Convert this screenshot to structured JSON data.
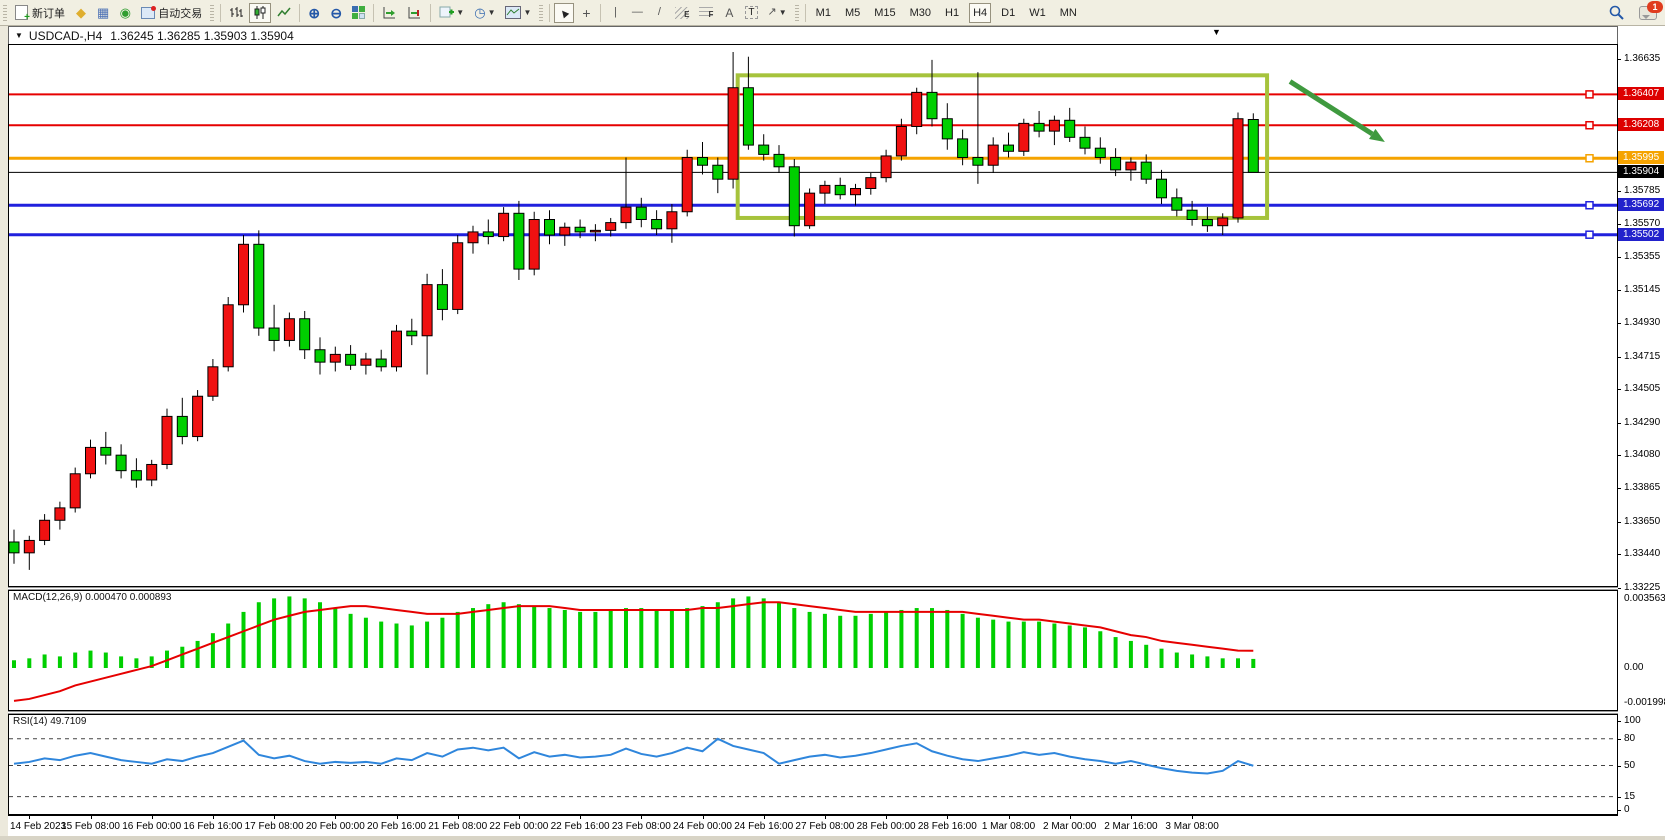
{
  "toolbar": {
    "new_order_label": "新订单",
    "auto_trading_label": "自动交易",
    "timeframes": [
      "M1",
      "M5",
      "M15",
      "M30",
      "H1",
      "H4",
      "D1",
      "W1",
      "MN"
    ],
    "active_timeframe": "H4",
    "notification_count": "1",
    "draw_channel_tag": "E",
    "draw_fibo_tag": "F",
    "text_tool_label": "A",
    "label_tool_label": "T",
    "icons": [
      "new-order-icon",
      "gold-diamond-icon",
      "market-window-icon",
      "signals-icon",
      "auto-trading-icon",
      "bar-chart-icon",
      "candlestick-chart-icon",
      "line-chart-icon",
      "zoom-in-icon",
      "zoom-out-icon",
      "tile-windows-icon",
      "auto-scroll-icon",
      "chart-shift-icon",
      "add-indicator-icon",
      "period-icon",
      "template-icon",
      "cursor-icon",
      "crosshair-icon",
      "vertical-line-icon",
      "horizontal-line-icon",
      "trendline-icon",
      "channel-icon",
      "fibonacci-icon",
      "text-icon",
      "label-icon",
      "arrows-icon",
      "search-icon",
      "notifications-icon"
    ]
  },
  "chart_header": {
    "symbol_period": "USDCAD-,H4",
    "ohlc": "1.36245 1.36285 1.35903 1.35904"
  },
  "price_axis": {
    "ticks": [
      1.36635,
      1.35785,
      1.3557,
      1.35355,
      1.35145,
      1.3493,
      1.34715,
      1.34505,
      1.3429,
      1.3408,
      1.33865,
      1.3365,
      1.3344,
      1.33225
    ],
    "badges": [
      {
        "text": "1.36407",
        "color": "#dd0000"
      },
      {
        "text": "1.36208",
        "color": "#dd0000"
      },
      {
        "text": "1.35995",
        "color": "#f5a300"
      },
      {
        "text": "1.35904",
        "color": "#000000"
      },
      {
        "text": "1.35692",
        "color": "#2222cc"
      },
      {
        "text": "1.35502",
        "color": "#2222cc"
      }
    ]
  },
  "time_axis": {
    "labels": [
      "14 Feb 2023",
      "15 Feb 08:00",
      "16 Feb 00:00",
      "16 Feb 16:00",
      "17 Feb 08:00",
      "20 Feb 00:00",
      "20 Feb 16:00",
      "21 Feb 08:00",
      "22 Feb 00:00",
      "22 Feb 16:00",
      "23 Feb 08:00",
      "24 Feb 00:00",
      "24 Feb 16:00",
      "27 Feb 08:00",
      "28 Feb 00:00",
      "28 Feb 16:00",
      "1 Mar 08:00",
      "2 Mar 00:00",
      "2 Mar 16:00",
      "3 Mar 08:00"
    ]
  },
  "indicators": {
    "macd": {
      "label": "MACD(12,26,9)",
      "values": "0.000470 0.000893",
      "axis_max": "0.003563",
      "axis_zero": "0.00",
      "axis_min": "-0.001998"
    },
    "rsi": {
      "label": "RSI(14)",
      "value": "49.7109",
      "axis": [
        "100",
        "80",
        "50",
        "15",
        "0"
      ]
    }
  },
  "colors": {
    "bull": "#f01111",
    "bear": "#00cf00",
    "candle_outline": "#000000",
    "macd_hist": "#00cf00",
    "macd_signal": "#e60000",
    "rsi_line": "#2f86dc",
    "box": "#a6c33c",
    "arrow": "#3f9a3f",
    "line_red": "#e60000",
    "line_orange": "#f5a300",
    "line_blue": "#2121dd",
    "bid_line": "#000000"
  },
  "chart_data": [
    {
      "type": "candlestick",
      "symbol": "USDCAD",
      "timeframe": "H4",
      "title": "USDCAD-,H4",
      "ohlc_header": {
        "open": 1.36245,
        "high": 1.36285,
        "low": 1.35903,
        "close": 1.35904
      },
      "price_range": [
        1.33225,
        1.36732
      ],
      "candles": [
        [
          1.3352,
          1.336,
          1.3338,
          1.3345
        ],
        [
          1.3345,
          1.3356,
          1.3334,
          1.3353
        ],
        [
          1.3353,
          1.337,
          1.335,
          1.3366
        ],
        [
          1.3366,
          1.3378,
          1.336,
          1.3374
        ],
        [
          1.3374,
          1.34,
          1.3371,
          1.3396
        ],
        [
          1.3396,
          1.3418,
          1.3393,
          1.3413
        ],
        [
          1.3413,
          1.3423,
          1.3402,
          1.3408
        ],
        [
          1.3408,
          1.3415,
          1.3393,
          1.3398
        ],
        [
          1.3398,
          1.3406,
          1.3387,
          1.3392
        ],
        [
          1.3392,
          1.3405,
          1.3388,
          1.3402
        ],
        [
          1.3402,
          1.3438,
          1.3399,
          1.3433
        ],
        [
          1.3433,
          1.3445,
          1.3415,
          1.342
        ],
        [
          1.342,
          1.345,
          1.3417,
          1.3446
        ],
        [
          1.3446,
          1.347,
          1.3443,
          1.3465
        ],
        [
          1.3465,
          1.351,
          1.3462,
          1.3505
        ],
        [
          1.3505,
          1.355,
          1.35,
          1.3544
        ],
        [
          1.3544,
          1.3553,
          1.3485,
          1.349
        ],
        [
          1.349,
          1.3505,
          1.3475,
          1.3482
        ],
        [
          1.3482,
          1.35,
          1.3478,
          1.3496
        ],
        [
          1.3496,
          1.3501,
          1.347,
          1.3476
        ],
        [
          1.3476,
          1.3484,
          1.346,
          1.3468
        ],
        [
          1.3468,
          1.3478,
          1.3462,
          1.3473
        ],
        [
          1.3473,
          1.3479,
          1.3463,
          1.3466
        ],
        [
          1.3466,
          1.3474,
          1.346,
          1.347
        ],
        [
          1.347,
          1.3476,
          1.3462,
          1.3465
        ],
        [
          1.3465,
          1.3492,
          1.3462,
          1.3488
        ],
        [
          1.3488,
          1.3496,
          1.3479,
          1.3485
        ],
        [
          1.3485,
          1.3525,
          1.346,
          1.3518
        ],
        [
          1.3518,
          1.3528,
          1.3495,
          1.3502
        ],
        [
          1.3502,
          1.355,
          1.3499,
          1.3545
        ],
        [
          1.3545,
          1.3556,
          1.3538,
          1.3552
        ],
        [
          1.3552,
          1.356,
          1.3544,
          1.3549
        ],
        [
          1.3549,
          1.3568,
          1.3546,
          1.3564
        ],
        [
          1.3564,
          1.3572,
          1.3521,
          1.3528
        ],
        [
          1.3528,
          1.3565,
          1.3524,
          1.356
        ],
        [
          1.356,
          1.3566,
          1.3544,
          1.355
        ],
        [
          1.355,
          1.3558,
          1.3543,
          1.3555
        ],
        [
          1.3555,
          1.356,
          1.3548,
          1.3552
        ],
        [
          1.3552,
          1.3557,
          1.3546,
          1.3553
        ],
        [
          1.3553,
          1.3561,
          1.3549,
          1.3558
        ],
        [
          1.3558,
          1.36,
          1.3554,
          1.3568
        ],
        [
          1.3568,
          1.3574,
          1.3555,
          1.356
        ],
        [
          1.356,
          1.3566,
          1.355,
          1.3554
        ],
        [
          1.3554,
          1.357,
          1.3545,
          1.3565
        ],
        [
          1.3565,
          1.3605,
          1.3562,
          1.36
        ],
        [
          1.36,
          1.361,
          1.3589,
          1.3595
        ],
        [
          1.3595,
          1.36,
          1.3577,
          1.3586
        ],
        [
          1.3586,
          1.3668,
          1.358,
          1.3645
        ],
        [
          1.3645,
          1.3665,
          1.3605,
          1.3608
        ],
        [
          1.3608,
          1.3615,
          1.3598,
          1.3602
        ],
        [
          1.3602,
          1.3608,
          1.359,
          1.3594
        ],
        [
          1.3594,
          1.3599,
          1.3549,
          1.3556
        ],
        [
          1.3556,
          1.358,
          1.3554,
          1.3577
        ],
        [
          1.3577,
          1.3585,
          1.357,
          1.3582
        ],
        [
          1.3582,
          1.3587,
          1.3573,
          1.3576
        ],
        [
          1.3576,
          1.3583,
          1.3569,
          1.358
        ],
        [
          1.358,
          1.359,
          1.3576,
          1.3587
        ],
        [
          1.3587,
          1.3605,
          1.3584,
          1.3601
        ],
        [
          1.3601,
          1.3625,
          1.3598,
          1.362
        ],
        [
          1.362,
          1.3645,
          1.3615,
          1.3642
        ],
        [
          1.3642,
          1.3663,
          1.362,
          1.3625
        ],
        [
          1.3625,
          1.3635,
          1.3605,
          1.3612
        ],
        [
          1.3612,
          1.3618,
          1.3595,
          1.36
        ],
        [
          1.36,
          1.3655,
          1.3583,
          1.3595
        ],
        [
          1.3595,
          1.3613,
          1.359,
          1.3608
        ],
        [
          1.3608,
          1.3616,
          1.36,
          1.3604
        ],
        [
          1.3604,
          1.3625,
          1.3601,
          1.3622
        ],
        [
          1.3622,
          1.363,
          1.3613,
          1.3617
        ],
        [
          1.3617,
          1.3627,
          1.3608,
          1.3624
        ],
        [
          1.3624,
          1.3632,
          1.361,
          1.3613
        ],
        [
          1.3613,
          1.362,
          1.3602,
          1.3606
        ],
        [
          1.3606,
          1.3613,
          1.3596,
          1.36
        ],
        [
          1.36,
          1.3606,
          1.3588,
          1.3592
        ],
        [
          1.3592,
          1.36,
          1.3585,
          1.3597
        ],
        [
          1.3597,
          1.3602,
          1.3583,
          1.3586
        ],
        [
          1.3586,
          1.3592,
          1.357,
          1.3574
        ],
        [
          1.3574,
          1.358,
          1.3562,
          1.3566
        ],
        [
          1.3566,
          1.3572,
          1.3556,
          1.356
        ],
        [
          1.356,
          1.3568,
          1.3552,
          1.3556
        ],
        [
          1.3556,
          1.3564,
          1.355,
          1.3561
        ],
        [
          1.3561,
          1.3629,
          1.3558,
          1.3625
        ],
        [
          1.36245,
          1.36285,
          1.35903,
          1.35904
        ]
      ],
      "annotations": {
        "hlines": [
          {
            "price": 1.36407,
            "color": "#e60000",
            "width": 2
          },
          {
            "price": 1.36208,
            "color": "#e60000",
            "width": 2
          },
          {
            "price": 1.35995,
            "color": "#f5a300",
            "width": 3
          },
          {
            "price": 1.35904,
            "color": "#000000",
            "width": 1
          },
          {
            "price": 1.35692,
            "color": "#2121dd",
            "width": 3
          },
          {
            "price": 1.35502,
            "color": "#2121dd",
            "width": 3
          }
        ],
        "box": {
          "from_candle": 47.3,
          "to_candle": 81.9,
          "price_high": 1.3653,
          "price_low": 1.3561,
          "color": "#a6c33c"
        },
        "arrow": {
          "from_candle": 83.4,
          "from_price": 1.3649,
          "to_candle": 89.6,
          "to_price": 1.361,
          "color": "#3f9a3f"
        }
      }
    },
    {
      "type": "bar",
      "name": "MACD histogram",
      "ylim": [
        -0.001998,
        0.003563
      ],
      "values": [
        0.0004,
        0.0005,
        0.0007,
        0.0006,
        0.0008,
        0.0009,
        0.0008,
        0.0006,
        0.0005,
        0.0006,
        0.0009,
        0.0011,
        0.0014,
        0.0018,
        0.0023,
        0.0029,
        0.0034,
        0.0036,
        0.0037,
        0.0036,
        0.0034,
        0.0031,
        0.0028,
        0.0026,
        0.0024,
        0.0023,
        0.0022,
        0.0024,
        0.0026,
        0.0029,
        0.0031,
        0.0033,
        0.0034,
        0.0033,
        0.0032,
        0.0031,
        0.003,
        0.0029,
        0.0029,
        0.003,
        0.0031,
        0.0031,
        0.003,
        0.003,
        0.0031,
        0.0032,
        0.0034,
        0.0036,
        0.0037,
        0.0036,
        0.0034,
        0.0031,
        0.0029,
        0.0028,
        0.0027,
        0.0027,
        0.0028,
        0.0029,
        0.003,
        0.0031,
        0.0031,
        0.003,
        0.0028,
        0.0026,
        0.0025,
        0.0024,
        0.0024,
        0.0024,
        0.0023,
        0.0022,
        0.0021,
        0.0019,
        0.0016,
        0.0014,
        0.0012,
        0.001,
        0.0008,
        0.0007,
        0.0006,
        0.0005,
        0.0005,
        0.00047
      ]
    },
    {
      "type": "line",
      "name": "MACD signal",
      "values": [
        -0.0017,
        -0.0016,
        -0.0014,
        -0.0012,
        -0.0009,
        -0.0007,
        -0.0005,
        -0.0003,
        -0.0001,
        0.0001,
        0.0004,
        0.0007,
        0.001,
        0.0013,
        0.0016,
        0.0019,
        0.0022,
        0.0025,
        0.0027,
        0.0029,
        0.003,
        0.0031,
        0.0032,
        0.0032,
        0.0031,
        0.003,
        0.0029,
        0.0028,
        0.0028,
        0.0028,
        0.0029,
        0.003,
        0.0031,
        0.0032,
        0.0032,
        0.0032,
        0.0031,
        0.003,
        0.003,
        0.003,
        0.003,
        0.003,
        0.003,
        0.003,
        0.003,
        0.0031,
        0.0031,
        0.0032,
        0.0033,
        0.0034,
        0.0034,
        0.0033,
        0.0032,
        0.0031,
        0.003,
        0.0029,
        0.0029,
        0.0029,
        0.0029,
        0.0029,
        0.0029,
        0.0029,
        0.0029,
        0.0028,
        0.0027,
        0.0026,
        0.0025,
        0.0025,
        0.0024,
        0.0023,
        0.0022,
        0.0021,
        0.0019,
        0.0017,
        0.0016,
        0.0014,
        0.0013,
        0.0012,
        0.0011,
        0.001,
        0.0009,
        0.000893
      ]
    },
    {
      "type": "line",
      "name": "RSI",
      "ylim": [
        0,
        100
      ],
      "levels": [
        80,
        50,
        15
      ],
      "values": [
        52,
        54,
        58,
        56,
        61,
        64,
        60,
        56,
        54,
        52,
        57,
        55,
        60,
        64,
        71,
        78,
        62,
        58,
        61,
        55,
        52,
        54,
        53,
        54,
        52,
        58,
        56,
        64,
        60,
        68,
        70,
        67,
        70,
        58,
        65,
        60,
        62,
        59,
        60,
        62,
        69,
        63,
        60,
        64,
        70,
        66,
        80,
        72,
        68,
        64,
        52,
        56,
        60,
        62,
        59,
        61,
        64,
        68,
        72,
        75,
        66,
        61,
        57,
        55,
        58,
        61,
        65,
        62,
        64,
        60,
        57,
        55,
        52,
        55,
        51,
        47,
        44,
        42,
        41,
        44,
        55,
        49.7109
      ]
    }
  ]
}
